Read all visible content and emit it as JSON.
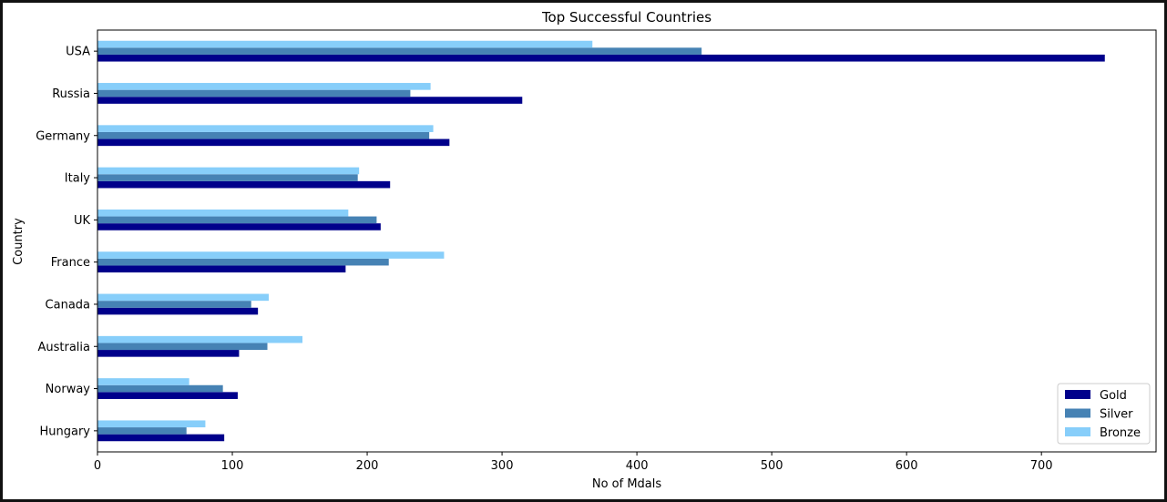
{
  "chart_data": {
    "type": "bar",
    "orientation": "horizontal",
    "title": "Top Successful Countries",
    "xlabel": "No of Mdals",
    "ylabel": "Country",
    "categories": [
      "USA",
      "Russia",
      "Germany",
      "Italy",
      "UK",
      "France",
      "Canada",
      "Australia",
      "Norway",
      "Hungary"
    ],
    "series": [
      {
        "name": "Gold",
        "color": "#00008B",
        "values": [
          747,
          315,
          261,
          217,
          210,
          184,
          119,
          105,
          104,
          94
        ]
      },
      {
        "name": "Silver",
        "color": "#4682B4",
        "values": [
          448,
          232,
          246,
          193,
          207,
          216,
          114,
          126,
          93,
          66
        ]
      },
      {
        "name": "Bronze",
        "color": "#87CEFA",
        "values": [
          367,
          247,
          249,
          194,
          186,
          257,
          127,
          152,
          68,
          80
        ]
      }
    ],
    "xlim": [
      0,
      785
    ],
    "xticks": [
      0,
      100,
      200,
      300,
      400,
      500,
      600,
      700
    ],
    "grid": false,
    "legend_position": "lower-right"
  }
}
